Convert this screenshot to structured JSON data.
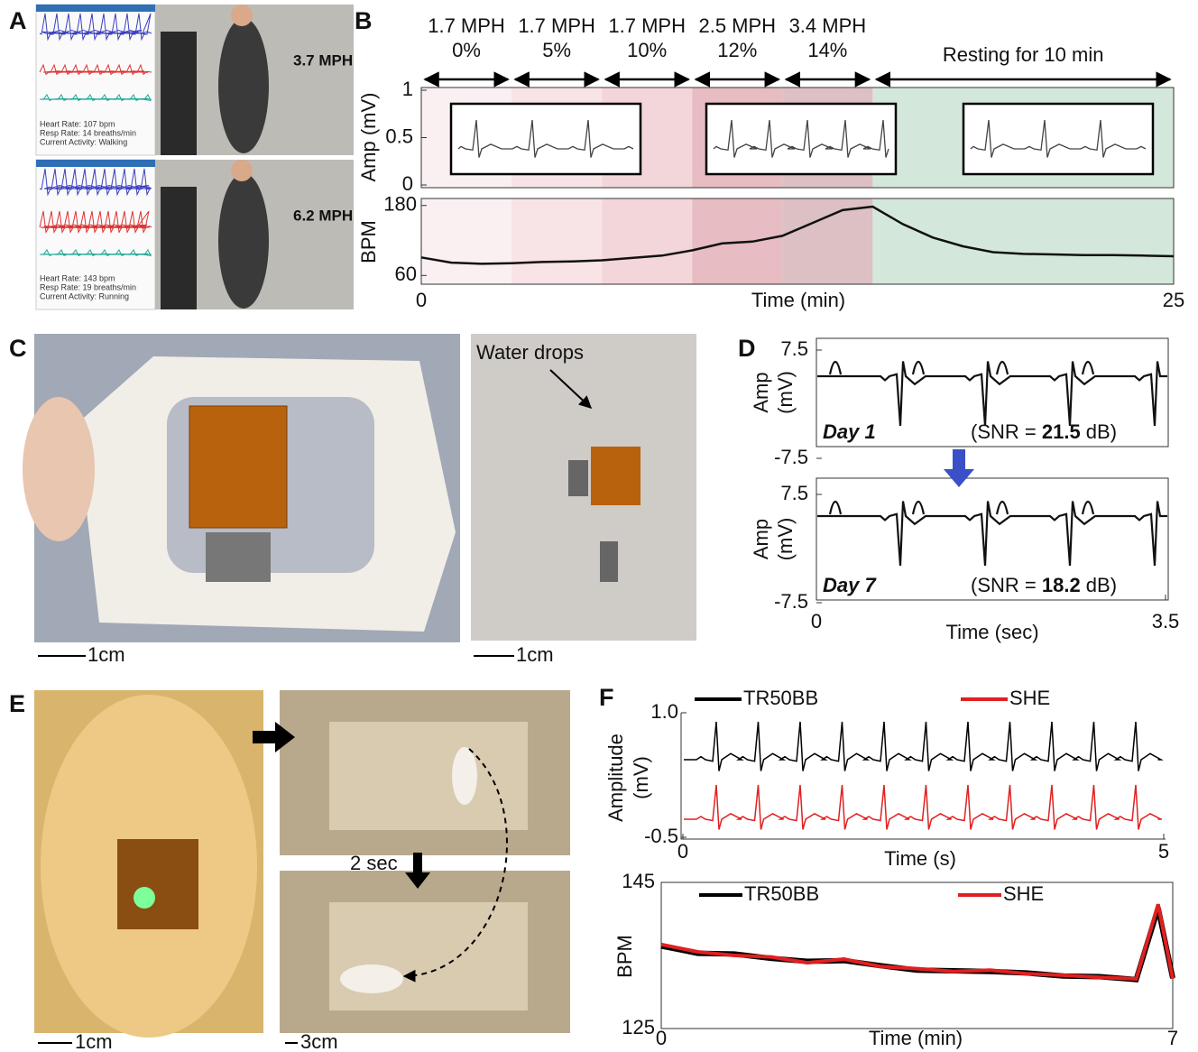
{
  "panel_labels": [
    "A",
    "B",
    "C",
    "D",
    "E",
    "F"
  ],
  "panel_a": {
    "screens": [
      {
        "heart_rate": "Heart Rate: 107 bpm",
        "resp_rate": "Resp Rate: 14 breaths/min",
        "activity": "Current Activity: Walking",
        "speed": "3.7 MPH"
      },
      {
        "heart_rate": "Heart Rate: 143 bpm",
        "resp_rate": "Resp Rate: 19 breaths/min",
        "activity": "Current Activity: Running",
        "speed": "6.2 MPH"
      }
    ]
  },
  "panel_b": {
    "stages": [
      {
        "speed": "1.7 MPH",
        "grade": "0%"
      },
      {
        "speed": "1.7 MPH",
        "grade": "5%"
      },
      {
        "speed": "1.7 MPH",
        "grade": "10%"
      },
      {
        "speed": "2.5 MPH",
        "grade": "12%"
      },
      {
        "speed": "3.4 MPH",
        "grade": "14%"
      },
      {
        "label": "Resting for 10 min"
      }
    ],
    "stage_edges": [
      0,
      3,
      6,
      9,
      12,
      15,
      25
    ],
    "stage_colors": [
      "#fbf0f1",
      "#f8e4e6",
      "#f3d6da",
      "#e7bcc2",
      "#dcc0c3",
      "#d3e8da"
    ],
    "amp_chart": {
      "ylabel": "Amp (mV)",
      "ylim": [
        0,
        1
      ],
      "yticks": [
        0,
        0.5,
        1
      ]
    },
    "bpm_chart": {
      "type": "line",
      "ylabel": "BPM",
      "xlabel": "Time (min)",
      "color": "#111",
      "x": [
        0,
        1,
        2,
        3,
        4,
        5,
        6,
        7,
        8,
        9,
        10,
        11,
        12,
        13,
        14,
        15,
        16,
        17,
        18,
        19,
        20,
        21,
        22,
        23,
        24,
        25
      ],
      "values": [
        91,
        82,
        80,
        81,
        83,
        84,
        86,
        90,
        94,
        103,
        115,
        118,
        128,
        150,
        172,
        178,
        148,
        125,
        110,
        100,
        97,
        96,
        95,
        95,
        94,
        93
      ],
      "xlim": [
        0,
        25
      ],
      "xticks": [
        0,
        25
      ],
      "ylim": [
        45,
        192
      ],
      "yticks": [
        60,
        180
      ]
    }
  },
  "panel_c": {
    "annotation": "Water drops",
    "scale_bars": [
      "1cm",
      "1cm"
    ]
  },
  "panel_d": {
    "ylabel_lines": [
      "Amp",
      "(mV)"
    ],
    "xlabel": "Time (sec)",
    "xlim": [
      0,
      3.5
    ],
    "xticks": [
      0,
      3.5
    ],
    "ylim": [
      -7.5,
      7.5
    ],
    "yticks": [
      -7.5,
      7.5
    ],
    "recordings": [
      {
        "day": "Day 1",
        "snr_prefix": "(SNR = ",
        "snr": 21.5,
        "snr_unit": " dB)"
      },
      {
        "day": "Day 7",
        "snr_prefix": "(SNR = ",
        "snr": 18.2,
        "snr_unit": " dB)"
      }
    ]
  },
  "panel_e": {
    "annotation": "2 sec",
    "scale_bars": [
      "1cm",
      "3cm"
    ]
  },
  "panel_f": {
    "ecg": {
      "series": [
        {
          "name": "TR50BB",
          "color": "#000000"
        },
        {
          "name": "SHE",
          "color": "#e02020"
        }
      ],
      "ylabel_lines": [
        "Amplitude",
        "(mV)"
      ],
      "xlabel": "Time (s)",
      "xlim": [
        0,
        5
      ],
      "xticks": [
        0,
        5
      ],
      "ylim": [
        -0.5,
        1.0
      ],
      "yticks": [
        -0.5,
        {
          "value": 1.0,
          "label": "1.0"
        }
      ]
    },
    "bpm": {
      "type": "line",
      "ylabel": "BPM",
      "xlabel": "Time (min)",
      "x": [
        0,
        0.5,
        1,
        1.5,
        2,
        2.5,
        3,
        3.5,
        4,
        4.5,
        5,
        5.5,
        6,
        6.5,
        6.8,
        7
      ],
      "series": [
        {
          "name": "TR50BB",
          "color": "#000000",
          "values": [
            136.3,
            135.3,
            135.2,
            134.6,
            134.2,
            134.3,
            133.6,
            133,
            132.9,
            132.8,
            132.6,
            132.2,
            132.1,
            131.7,
            141.5,
            131.9
          ]
        },
        {
          "name": "SHE",
          "color": "#e02020",
          "values": [
            136.5,
            135.5,
            135,
            134.8,
            134,
            134.5,
            133.5,
            133.2,
            132.8,
            133,
            132.5,
            132.3,
            132,
            131.8,
            142,
            131.8
          ]
        }
      ],
      "xlim": [
        0,
        7
      ],
      "xticks": [
        0,
        7
      ],
      "ylim": [
        125,
        145
      ],
      "yticks": [
        125,
        145
      ]
    }
  }
}
